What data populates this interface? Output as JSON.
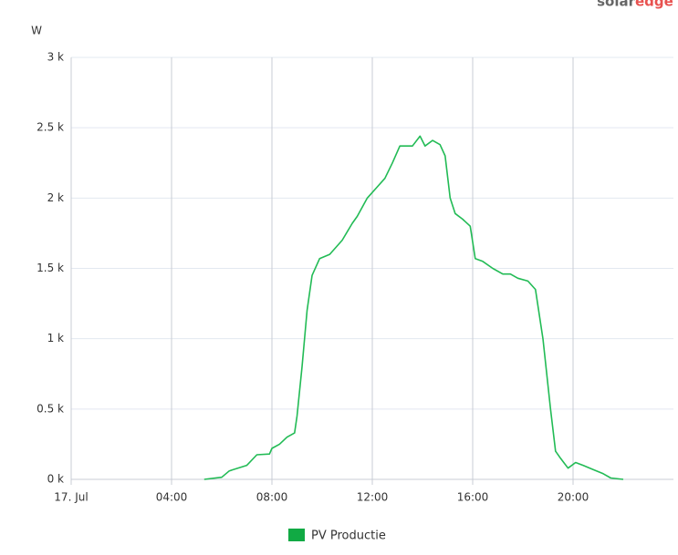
{
  "chart_data": {
    "type": "line",
    "brand": [
      "solar",
      "edge"
    ],
    "ylabel": "W",
    "x": [
      5.3,
      6.0,
      6.3,
      7.0,
      7.4,
      7.9,
      8.0,
      8.3,
      8.6,
      8.9,
      9.0,
      9.2,
      9.4,
      9.6,
      9.9,
      10.3,
      10.8,
      11.2,
      11.4,
      11.8,
      12.2,
      12.5,
      12.8,
      13.1,
      13.6,
      13.9,
      14.1,
      14.4,
      14.7,
      14.9,
      15.1,
      15.3,
      15.6,
      15.9,
      16.1,
      16.4,
      16.8,
      17.2,
      17.5,
      17.8,
      18.2,
      18.5,
      18.8,
      19.1,
      19.3,
      19.5,
      19.8,
      20.1,
      20.4,
      20.8,
      21.2,
      21.5,
      22.0
    ],
    "series": [
      {
        "name": "PV Productie",
        "color": "#22bb55",
        "values": [
          0,
          15,
          60,
          100,
          175,
          180,
          220,
          250,
          300,
          330,
          450,
          800,
          1200,
          1450,
          1570,
          1600,
          1700,
          1820,
          1870,
          2000,
          2080,
          2140,
          2250,
          2370,
          2370,
          2440,
          2370,
          2410,
          2380,
          2300,
          2000,
          1890,
          1850,
          1800,
          1570,
          1550,
          1500,
          1460,
          1460,
          1430,
          1410,
          1350,
          1000,
          500,
          200,
          150,
          80,
          120,
          100,
          70,
          40,
          10,
          0
        ]
      }
    ],
    "legend_swatch_color": "#11aa44",
    "xlim": [
      0,
      24
    ],
    "xticks": [
      {
        "value": 0,
        "label": "17. Jul"
      },
      {
        "value": 4,
        "label": "04:00"
      },
      {
        "value": 8,
        "label": "08:00"
      },
      {
        "value": 12,
        "label": "12:00"
      },
      {
        "value": 16,
        "label": "16:00"
      },
      {
        "value": 20,
        "label": "20:00"
      }
    ],
    "ylim": [
      0,
      3000
    ],
    "yticks": [
      {
        "value": 0,
        "label": "0 k"
      },
      {
        "value": 500,
        "label": "0.5 k"
      },
      {
        "value": 1000,
        "label": "1 k"
      },
      {
        "value": 1500,
        "label": "1.5 k"
      },
      {
        "value": 2000,
        "label": "2 k"
      },
      {
        "value": 2500,
        "label": "2.5 k"
      },
      {
        "value": 3000,
        "label": "3 k"
      }
    ],
    "grid": true
  }
}
